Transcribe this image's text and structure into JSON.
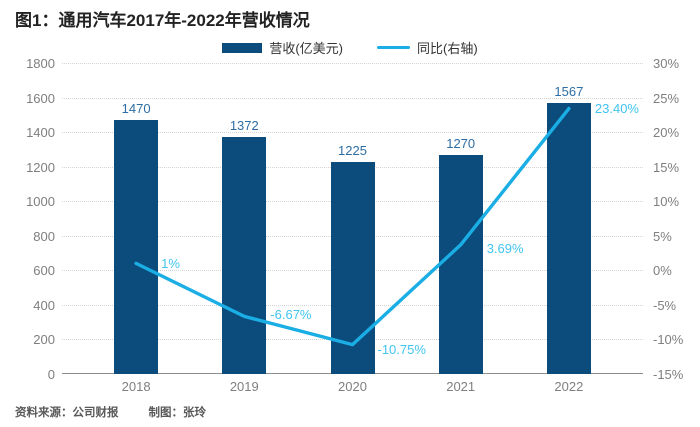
{
  "title": "图1：通用汽车2017年-2022年营收情况",
  "legend": {
    "items": [
      {
        "label": "营收(亿美元)",
        "type": "bar"
      },
      {
        "label": "同比(右轴)",
        "type": "line"
      }
    ]
  },
  "footer": {
    "source": "资料来源：公司财报",
    "credit": "制图：张玲"
  },
  "colors": {
    "bar": "#0b4c7c",
    "line": "#1aaee5",
    "line_label": "#41c4f0",
    "bar_label": "#2e6da4",
    "axis_text": "#7f7f7f",
    "grid": "#d4d4d4"
  },
  "chart_data": {
    "type": "bar",
    "subtype": "bar+line-dual-axis",
    "title": "图1：通用汽车2017年-2022年营收情况",
    "categories": [
      "2018",
      "2019",
      "2020",
      "2021",
      "2022"
    ],
    "series": [
      {
        "name": "营收(亿美元)",
        "type": "bar",
        "axis": "left",
        "color": "#0b4c7c",
        "values": [
          1470,
          1372,
          1225,
          1270,
          1567
        ],
        "labels": [
          "1470",
          "1372",
          "1225",
          "1270",
          "1567"
        ]
      },
      {
        "name": "同比(右轴)",
        "type": "line",
        "axis": "right",
        "color": "#1aaee5",
        "values": [
          1,
          -6.67,
          -10.75,
          3.69,
          23.4
        ],
        "labels": [
          "1%",
          "-6.67%",
          "-10.75%",
          "3.69%",
          "23.40%"
        ]
      }
    ],
    "y_left": {
      "min": 0,
      "max": 1800,
      "step": 200,
      "ticks": [
        "0",
        "200",
        "400",
        "600",
        "800",
        "1000",
        "1200",
        "1400",
        "1600",
        "1800"
      ]
    },
    "y_right": {
      "min": -15,
      "max": 30,
      "step": 5,
      "ticks": [
        "-15%",
        "-10%",
        "-5%",
        "0%",
        "5%",
        "10%",
        "15%",
        "20%",
        "25%",
        "30%"
      ]
    },
    "grid": "horizontal-dotted",
    "legend_position": "top-center"
  }
}
